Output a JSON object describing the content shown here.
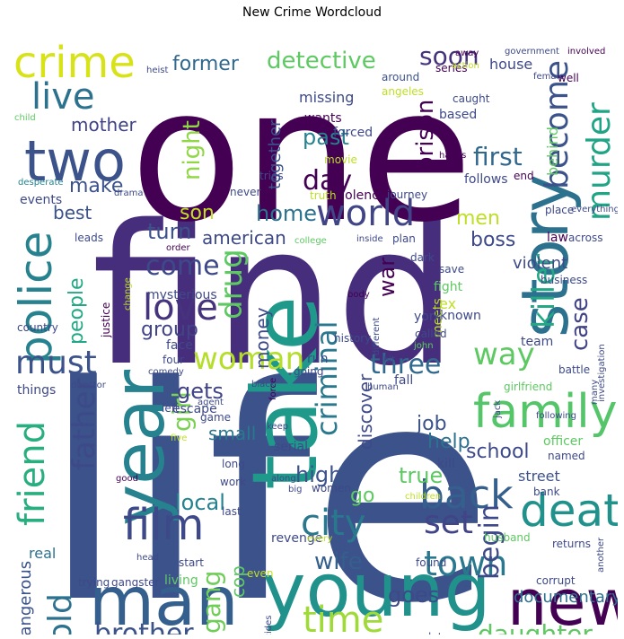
{
  "title": "New Crime Wordcloud",
  "palette": [
    "#440154",
    "#3b528b",
    "#21918c",
    "#5ec962",
    "#fde725"
  ],
  "words": [
    {
      "text": "life",
      "c": "#3b528b"
    },
    {
      "text": "find",
      "c": "#472e7c"
    },
    {
      "text": "one",
      "c": "#440154"
    },
    {
      "text": "young",
      "c": "#21918c"
    },
    {
      "text": "take",
      "c": "#1f9a8a"
    },
    {
      "text": "new",
      "c": "#440154"
    },
    {
      "text": "man",
      "c": "#355f8d"
    },
    {
      "text": "story",
      "c": "#2c718e"
    },
    {
      "text": "year",
      "c": "#26828e"
    },
    {
      "text": "two",
      "c": "#3b528b"
    },
    {
      "text": "crime",
      "c": "#d8e219"
    },
    {
      "text": "family",
      "c": "#54c568"
    },
    {
      "text": "death",
      "c": "#21918c"
    },
    {
      "text": "film",
      "c": "#3e4989"
    },
    {
      "text": "police",
      "c": "#26828e"
    },
    {
      "text": "world",
      "c": "#414487"
    },
    {
      "text": "friend",
      "c": "#29af7f"
    },
    {
      "text": "time",
      "c": "#a0da39"
    },
    {
      "text": "city",
      "c": "#2a788e"
    },
    {
      "text": "back",
      "c": "#355f8d"
    },
    {
      "text": "love",
      "c": "#46337e"
    },
    {
      "text": "woman",
      "c": "#b5de2b"
    },
    {
      "text": "murder",
      "c": "#20a486"
    },
    {
      "text": "live",
      "c": "#2c718e"
    },
    {
      "text": "become",
      "c": "#3b528b"
    },
    {
      "text": "killer",
      "c": "#22a884"
    },
    {
      "text": "town",
      "c": "#2a788e"
    },
    {
      "text": "drug",
      "c": "#5ec962"
    },
    {
      "text": "father",
      "c": "#3e4989"
    },
    {
      "text": "must",
      "c": "#3b528b"
    },
    {
      "text": "set",
      "c": "#414487"
    },
    {
      "text": "criminal",
      "c": "#2a788e"
    },
    {
      "text": "three",
      "c": "#31688e"
    },
    {
      "text": "way",
      "c": "#5ec962"
    },
    {
      "text": "day",
      "c": "#440154"
    },
    {
      "text": "come",
      "c": "#3e4989"
    },
    {
      "text": "brother",
      "c": "#3b528b"
    },
    {
      "text": "old",
      "c": "#2c718e"
    },
    {
      "text": "case",
      "c": "#414487"
    },
    {
      "text": "daughter",
      "c": "#5ec962"
    },
    {
      "text": "gang",
      "c": "#6ece58"
    },
    {
      "text": "begin",
      "c": "#3e4989"
    },
    {
      "text": "detective",
      "c": "#5ec962"
    },
    {
      "text": "girl",
      "c": "#7ad151"
    },
    {
      "text": "prison",
      "c": "#440154"
    },
    {
      "text": "soon",
      "c": "#46337e"
    },
    {
      "text": "first",
      "c": "#31688e"
    },
    {
      "text": "wife",
      "c": "#355f8d"
    },
    {
      "text": "local",
      "c": "#26828e"
    },
    {
      "text": "former",
      "c": "#31688e"
    },
    {
      "text": "mother",
      "c": "#404387"
    },
    {
      "text": "past",
      "c": "#26828e"
    },
    {
      "text": "night",
      "c": "#8fd744"
    },
    {
      "text": "home",
      "c": "#2c718e"
    },
    {
      "text": "turn",
      "c": "#3b528b"
    },
    {
      "text": "make",
      "c": "#3b528b"
    },
    {
      "text": "gets",
      "c": "#404387"
    },
    {
      "text": "school",
      "c": "#3e4989"
    },
    {
      "text": "true",
      "c": "#5ec962"
    },
    {
      "text": "men",
      "c": "#bddf26"
    },
    {
      "text": "boss",
      "c": "#3e4989"
    },
    {
      "text": "high",
      "c": "#3b528b"
    },
    {
      "text": "help",
      "c": "#2c718e"
    },
    {
      "text": "job",
      "c": "#3b528b"
    },
    {
      "text": "goes",
      "c": "#3e4989"
    },
    {
      "text": "son",
      "c": "#c2df23"
    },
    {
      "text": "group",
      "c": "#414487"
    },
    {
      "text": "best",
      "c": "#3b528b"
    },
    {
      "text": "cop",
      "c": "#5ec962"
    },
    {
      "text": "go",
      "c": "#5ec962"
    },
    {
      "text": "discover",
      "c": "#3e4989"
    },
    {
      "text": "together",
      "c": "#3b528b"
    },
    {
      "text": "money",
      "c": "#3e4989"
    },
    {
      "text": "war",
      "c": "#440154"
    },
    {
      "text": "people",
      "c": "#22a884"
    },
    {
      "text": "small",
      "c": "#2a788e"
    },
    {
      "text": "american",
      "c": "#3e4989"
    },
    {
      "text": "dead",
      "c": "#3e4989"
    },
    {
      "text": "documentary",
      "c": "#2c718e"
    },
    {
      "text": "violent",
      "c": "#3e4989"
    },
    {
      "text": "behind",
      "c": "#5ec962"
    },
    {
      "text": "dangerous",
      "c": "#3b528b"
    },
    {
      "text": "real",
      "c": "#2c718e"
    },
    {
      "text": "street",
      "c": "#3b528b"
    },
    {
      "text": "house",
      "c": "#3e4989"
    },
    {
      "text": "based",
      "c": "#3e4989"
    },
    {
      "text": "series",
      "c": "#440154"
    },
    {
      "text": "around",
      "c": "#3b528b"
    },
    {
      "text": "missing",
      "c": "#3e4989"
    },
    {
      "text": "wants",
      "c": "#440154"
    },
    {
      "text": "heist",
      "c": "#3e4989"
    },
    {
      "text": "away",
      "c": "#440154"
    },
    {
      "text": "government",
      "c": "#3e4989"
    },
    {
      "text": "involved",
      "c": "#440154"
    },
    {
      "text": "female",
      "c": "#3e4989"
    },
    {
      "text": "well",
      "c": "#440154"
    },
    {
      "text": "caught",
      "c": "#3e4989"
    },
    {
      "text": "action",
      "c": "#bddf26"
    },
    {
      "text": "angeles",
      "c": "#bddf26"
    },
    {
      "text": "child",
      "c": "#5ec962"
    },
    {
      "text": "forced",
      "c": "#3e4989"
    },
    {
      "text": "movie",
      "c": "#bddf26"
    },
    {
      "text": "hands",
      "c": "#440154"
    },
    {
      "text": "follows",
      "c": "#3e4989"
    },
    {
      "text": "end",
      "c": "#440154"
    },
    {
      "text": "tries",
      "c": "#3e4989"
    },
    {
      "text": "truth",
      "c": "#bddf26"
    },
    {
      "text": "violence",
      "c": "#440154"
    },
    {
      "text": "journey",
      "c": "#3e4989"
    },
    {
      "text": "desperate",
      "c": "#26828e"
    },
    {
      "text": "drama",
      "c": "#3e4989"
    },
    {
      "text": "events",
      "c": "#3e4989"
    },
    {
      "text": "never",
      "c": "#3e4989"
    },
    {
      "text": "place",
      "c": "#3e4989"
    },
    {
      "text": "everything",
      "c": "#3e4989"
    },
    {
      "text": "leads",
      "c": "#3e4989"
    },
    {
      "text": "order",
      "c": "#440154"
    },
    {
      "text": "college",
      "c": "#5ec962"
    },
    {
      "text": "inside",
      "c": "#3e4989"
    },
    {
      "text": "plan",
      "c": "#3e4989"
    },
    {
      "text": "law",
      "c": "#440154"
    },
    {
      "text": "across",
      "c": "#3e4989"
    },
    {
      "text": "dark",
      "c": "#3e4989"
    },
    {
      "text": "save",
      "c": "#3e4989"
    },
    {
      "text": "fight",
      "c": "#5ec962"
    },
    {
      "text": "business",
      "c": "#3e4989"
    },
    {
      "text": "ex",
      "c": "#bddf26"
    },
    {
      "text": "known",
      "c": "#3e4989"
    },
    {
      "text": "meets",
      "c": "#bddf26"
    },
    {
      "text": "mysterious",
      "c": "#3e4989"
    },
    {
      "text": "justice",
      "c": "#440154"
    },
    {
      "text": "change",
      "c": "#bddf26"
    },
    {
      "text": "body",
      "c": "#440154"
    },
    {
      "text": "york",
      "c": "#3e4989"
    },
    {
      "text": "country",
      "c": "#3e4989"
    },
    {
      "text": "face",
      "c": "#3e4989"
    },
    {
      "text": "history",
      "c": "#3e4989"
    },
    {
      "text": "different",
      "c": "#3e4989"
    },
    {
      "text": "called",
      "c": "#3e4989"
    },
    {
      "text": "john",
      "c": "#5ec962"
    },
    {
      "text": "hit",
      "c": "#3e4989"
    },
    {
      "text": "team",
      "c": "#3e4989"
    },
    {
      "text": "investigation",
      "c": "#3e4989"
    },
    {
      "text": "four",
      "c": "#3e4989"
    },
    {
      "text": "run",
      "c": "#3e4989"
    },
    {
      "text": "comedy",
      "c": "#3e4989"
    },
    {
      "text": "going",
      "c": "#3e4989"
    },
    {
      "text": "fall",
      "c": "#3e4989"
    },
    {
      "text": "battle",
      "c": "#3e4989"
    },
    {
      "text": "things",
      "c": "#3e4989"
    },
    {
      "text": "director",
      "c": "#3e4989"
    },
    {
      "text": "escape",
      "c": "#3e4989"
    },
    {
      "text": "black",
      "c": "#3e4989"
    },
    {
      "text": "force",
      "c": "#440154"
    },
    {
      "text": "human",
      "c": "#3e4989"
    },
    {
      "text": "girlfriend",
      "c": "#5ec962"
    },
    {
      "text": "many",
      "c": "#3e4989"
    },
    {
      "text": "left",
      "c": "#3e4989"
    },
    {
      "text": "agent",
      "c": "#3e4989"
    },
    {
      "text": "game",
      "c": "#3e4989"
    },
    {
      "text": "keep",
      "c": "#3e4989"
    },
    {
      "text": "jack",
      "c": "#3e4989"
    },
    {
      "text": "following",
      "c": "#3e4989"
    },
    {
      "text": "kill",
      "c": "#3e4989"
    },
    {
      "text": "officer",
      "c": "#5ec962"
    },
    {
      "text": "five",
      "c": "#bddf26"
    },
    {
      "text": "serial",
      "c": "#3e4989"
    },
    {
      "text": "named",
      "c": "#3e4989"
    },
    {
      "text": "long",
      "c": "#3e4989"
    },
    {
      "text": "good",
      "c": "#440154"
    },
    {
      "text": "work",
      "c": "#3e4989"
    },
    {
      "text": "along",
      "c": "#3e4989"
    },
    {
      "text": "big",
      "c": "#3e4989"
    },
    {
      "text": "children",
      "c": "#bddf26"
    },
    {
      "text": "bank",
      "c": "#3e4989"
    },
    {
      "text": "women",
      "c": "#3e4989"
    },
    {
      "text": "last",
      "c": "#3e4989"
    },
    {
      "text": "revenge",
      "c": "#3e4989"
    },
    {
      "text": "every",
      "c": "#bddf26"
    },
    {
      "text": "husband",
      "c": "#5ec962"
    },
    {
      "text": "returns",
      "c": "#3e4989"
    },
    {
      "text": "another",
      "c": "#3e4989"
    },
    {
      "text": "head",
      "c": "#3e4989"
    },
    {
      "text": "start",
      "c": "#3e4989"
    },
    {
      "text": "found",
      "c": "#3e4989"
    },
    {
      "text": "trying",
      "c": "#3e4989"
    },
    {
      "text": "gangster",
      "c": "#3e4989"
    },
    {
      "text": "living",
      "c": "#5ec962"
    },
    {
      "text": "even",
      "c": "#bddf26"
    },
    {
      "text": "corrupt",
      "c": "#3e4989"
    },
    {
      "text": "beautiful",
      "c": "#bddf26"
    },
    {
      "text": "decides",
      "c": "#3e4989"
    },
    {
      "text": "control",
      "c": "#3e4989"
    },
    {
      "text": "murdered",
      "c": "#3e4989"
    },
    {
      "text": "secret",
      "c": "#3e4989"
    },
    {
      "text": "couple",
      "c": "#3e4989"
    },
    {
      "text": "later",
      "c": "#3e4989"
    },
    {
      "text": "deadly",
      "c": "#3e4989"
    },
    {
      "text": "boy",
      "c": "#3e4989"
    }
  ]
}
